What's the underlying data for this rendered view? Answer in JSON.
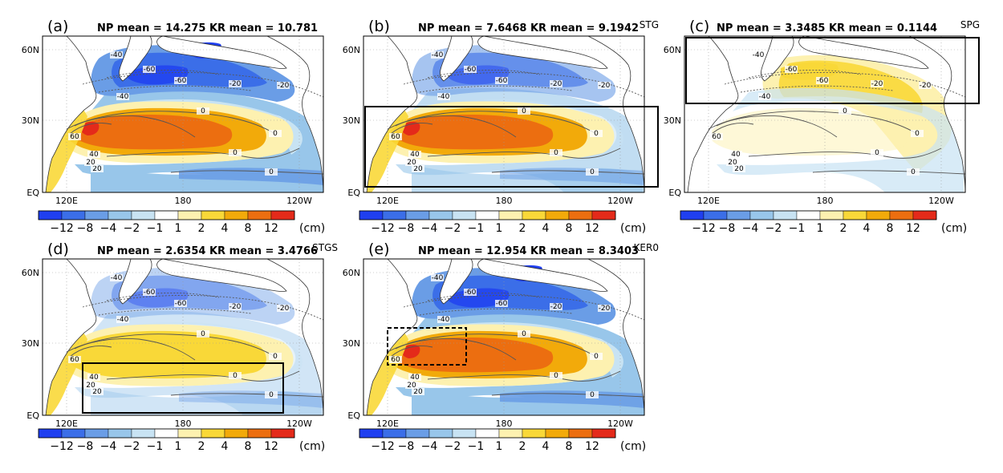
{
  "figure": {
    "panels": [
      {
        "label": "(a)",
        "title": "NP mean = 14.275 KR mean = 10.781",
        "tag": "",
        "box": "none",
        "warm": 1.0,
        "cool": 1.0,
        "npac": 1.0
      },
      {
        "label": "(b)",
        "title": "NP mean = 7.6468 KR mean = 9.1942",
        "tag": "STG",
        "box": "stg",
        "warm": 1.0,
        "cool": 0.6,
        "npac": 0.0
      },
      {
        "label": "(c)",
        "title": "NP mean = 3.3485 KR mean = 0.1144",
        "tag": "SPG",
        "box": "spg",
        "warm": 0.0,
        "cool": 0.0,
        "npac": 1.0
      },
      {
        "label": "(d)",
        "title": "NP mean = 2.6354 KR mean = 3.4766",
        "tag": "STGS",
        "box": "stgs",
        "warm": 0.55,
        "cool": 0.45,
        "npac": 0.0
      },
      {
        "label": "(e)",
        "title": "NP mean = 12.954 KR mean = 8.3403",
        "tag": "KER0",
        "box": "kero",
        "warm": 0.85,
        "cool": 1.0,
        "npac": 0.0
      }
    ],
    "axis": {
      "lat_labels": [
        "60N",
        "30N",
        "EQ"
      ],
      "lon_labels": [
        "120E",
        "180",
        "120W"
      ]
    },
    "colorbar": {
      "labels": [
        "−12",
        "−8",
        "−4",
        "−2",
        "−1",
        "1",
        "2",
        "4",
        "8",
        "12"
      ],
      "unit": "(cm)",
      "colors": [
        "#1f3ff0",
        "#3b6ee8",
        "#6a9de6",
        "#98c6ea",
        "#c8e3f3",
        "#ffffff",
        "#fdf1b0",
        "#f9d838",
        "#f2aa0a",
        "#ec6e10",
        "#e42a1a"
      ]
    },
    "contour_labels": [
      "-40",
      "-60",
      "-60",
      "-40",
      "-20",
      "-20",
      "20",
      "60",
      "40",
      "20",
      "0",
      "0",
      "0",
      "0"
    ]
  }
}
